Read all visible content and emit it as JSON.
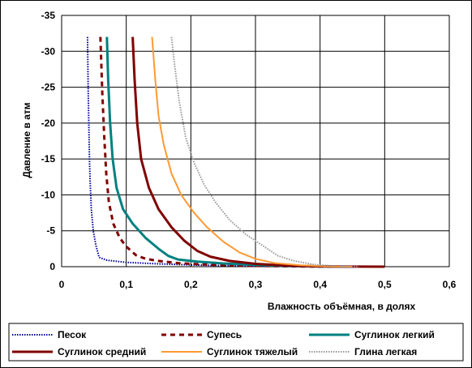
{
  "chart_data": {
    "type": "line",
    "title": "",
    "xlabel": "Влажность объёмная, в долях",
    "ylabel": "Давление в атм",
    "xlim": [
      0,
      0.6
    ],
    "ylim": [
      -35,
      0
    ],
    "y_reversed": true,
    "grid": true,
    "legend_position": "bottom",
    "x_ticks": [
      "0",
      "0,1",
      "0,2",
      "0,3",
      "0,4",
      "0,5",
      "0,6"
    ],
    "x_tick_values": [
      0,
      0.1,
      0.2,
      0.3,
      0.4,
      0.5,
      0.6
    ],
    "y_ticks": [
      "-35",
      "-30",
      "-25",
      "-20",
      "-15",
      "-10",
      "-5",
      "0"
    ],
    "y_tick_values": [
      -35,
      -30,
      -25,
      -20,
      -15,
      -10,
      -5,
      0
    ],
    "series": [
      {
        "name": "Песок",
        "color": "#000099",
        "style": "dotted",
        "points": [
          [
            0.04,
            -32
          ],
          [
            0.041,
            -25
          ],
          [
            0.042,
            -20
          ],
          [
            0.043,
            -15
          ],
          [
            0.044,
            -12
          ],
          [
            0.046,
            -8
          ],
          [
            0.049,
            -5
          ],
          [
            0.053,
            -3
          ],
          [
            0.058,
            -1.3
          ],
          [
            0.07,
            -0.9
          ],
          [
            0.1,
            -0.6
          ],
          [
            0.15,
            -0.4
          ],
          [
            0.2,
            -0.25
          ],
          [
            0.25,
            -0.15
          ],
          [
            0.3,
            -0.08
          ],
          [
            0.35,
            -0.03
          ],
          [
            0.4,
            0
          ]
        ]
      },
      {
        "name": "Супесь",
        "color": "#800000",
        "style": "dashed",
        "points": [
          [
            0.06,
            -32
          ],
          [
            0.063,
            -24
          ],
          [
            0.066,
            -18
          ],
          [
            0.069,
            -13
          ],
          [
            0.073,
            -9
          ],
          [
            0.08,
            -6
          ],
          [
            0.09,
            -4
          ],
          [
            0.1,
            -2.8
          ],
          [
            0.115,
            -1.6
          ],
          [
            0.13,
            -1.1
          ],
          [
            0.15,
            -0.8
          ],
          [
            0.18,
            -0.5
          ],
          [
            0.22,
            -0.3
          ],
          [
            0.28,
            -0.15
          ],
          [
            0.35,
            -0.05
          ],
          [
            0.42,
            0
          ]
        ]
      },
      {
        "name": "Суглинок легкий",
        "color": "#008080",
        "style": "solid",
        "points": [
          [
            0.07,
            -32
          ],
          [
            0.072,
            -26
          ],
          [
            0.075,
            -20
          ],
          [
            0.079,
            -15
          ],
          [
            0.085,
            -11
          ],
          [
            0.095,
            -8
          ],
          [
            0.11,
            -6
          ],
          [
            0.13,
            -4
          ],
          [
            0.15,
            -2.5
          ],
          [
            0.165,
            -1.5
          ],
          [
            0.18,
            -1.0
          ],
          [
            0.21,
            -0.7
          ],
          [
            0.25,
            -0.45
          ],
          [
            0.3,
            -0.25
          ],
          [
            0.35,
            -0.1
          ],
          [
            0.4,
            -0.03
          ],
          [
            0.45,
            0
          ]
        ]
      },
      {
        "name": "Суглинок средний",
        "color": "#800000",
        "style": "solid",
        "points": [
          [
            0.11,
            -32
          ],
          [
            0.113,
            -26
          ],
          [
            0.117,
            -20
          ],
          [
            0.123,
            -15
          ],
          [
            0.135,
            -11
          ],
          [
            0.15,
            -8
          ],
          [
            0.17,
            -5.5
          ],
          [
            0.19,
            -3.6
          ],
          [
            0.21,
            -2.2
          ],
          [
            0.23,
            -1.4
          ],
          [
            0.26,
            -0.8
          ],
          [
            0.3,
            -0.4
          ],
          [
            0.35,
            -0.15
          ],
          [
            0.4,
            -0.05
          ],
          [
            0.45,
            -0.01
          ],
          [
            0.5,
            0
          ]
        ]
      },
      {
        "name": "Суглинок тяжелый",
        "color": "#FF9933",
        "style": "solid-thin",
        "points": [
          [
            0.14,
            -32
          ],
          [
            0.145,
            -26
          ],
          [
            0.15,
            -21
          ],
          [
            0.158,
            -17
          ],
          [
            0.17,
            -13
          ],
          [
            0.185,
            -10
          ],
          [
            0.205,
            -7.5
          ],
          [
            0.225,
            -5.5
          ],
          [
            0.25,
            -3.5
          ],
          [
            0.275,
            -2
          ],
          [
            0.3,
            -1.1
          ],
          [
            0.33,
            -0.5
          ],
          [
            0.37,
            -0.2
          ],
          [
            0.41,
            -0.05
          ],
          [
            0.45,
            0
          ]
        ]
      },
      {
        "name": "Глина легкая",
        "color": "#999999",
        "style": "dotted",
        "points": [
          [
            0.17,
            -32
          ],
          [
            0.175,
            -28
          ],
          [
            0.182,
            -23
          ],
          [
            0.192,
            -18
          ],
          [
            0.205,
            -14.5
          ],
          [
            0.22,
            -11.5
          ],
          [
            0.238,
            -9
          ],
          [
            0.26,
            -6.5
          ],
          [
            0.285,
            -4.5
          ],
          [
            0.31,
            -3
          ],
          [
            0.335,
            -1.5
          ],
          [
            0.36,
            -0.8
          ],
          [
            0.39,
            -0.3
          ],
          [
            0.42,
            -0.1
          ],
          [
            0.46,
            0
          ]
        ]
      }
    ]
  }
}
